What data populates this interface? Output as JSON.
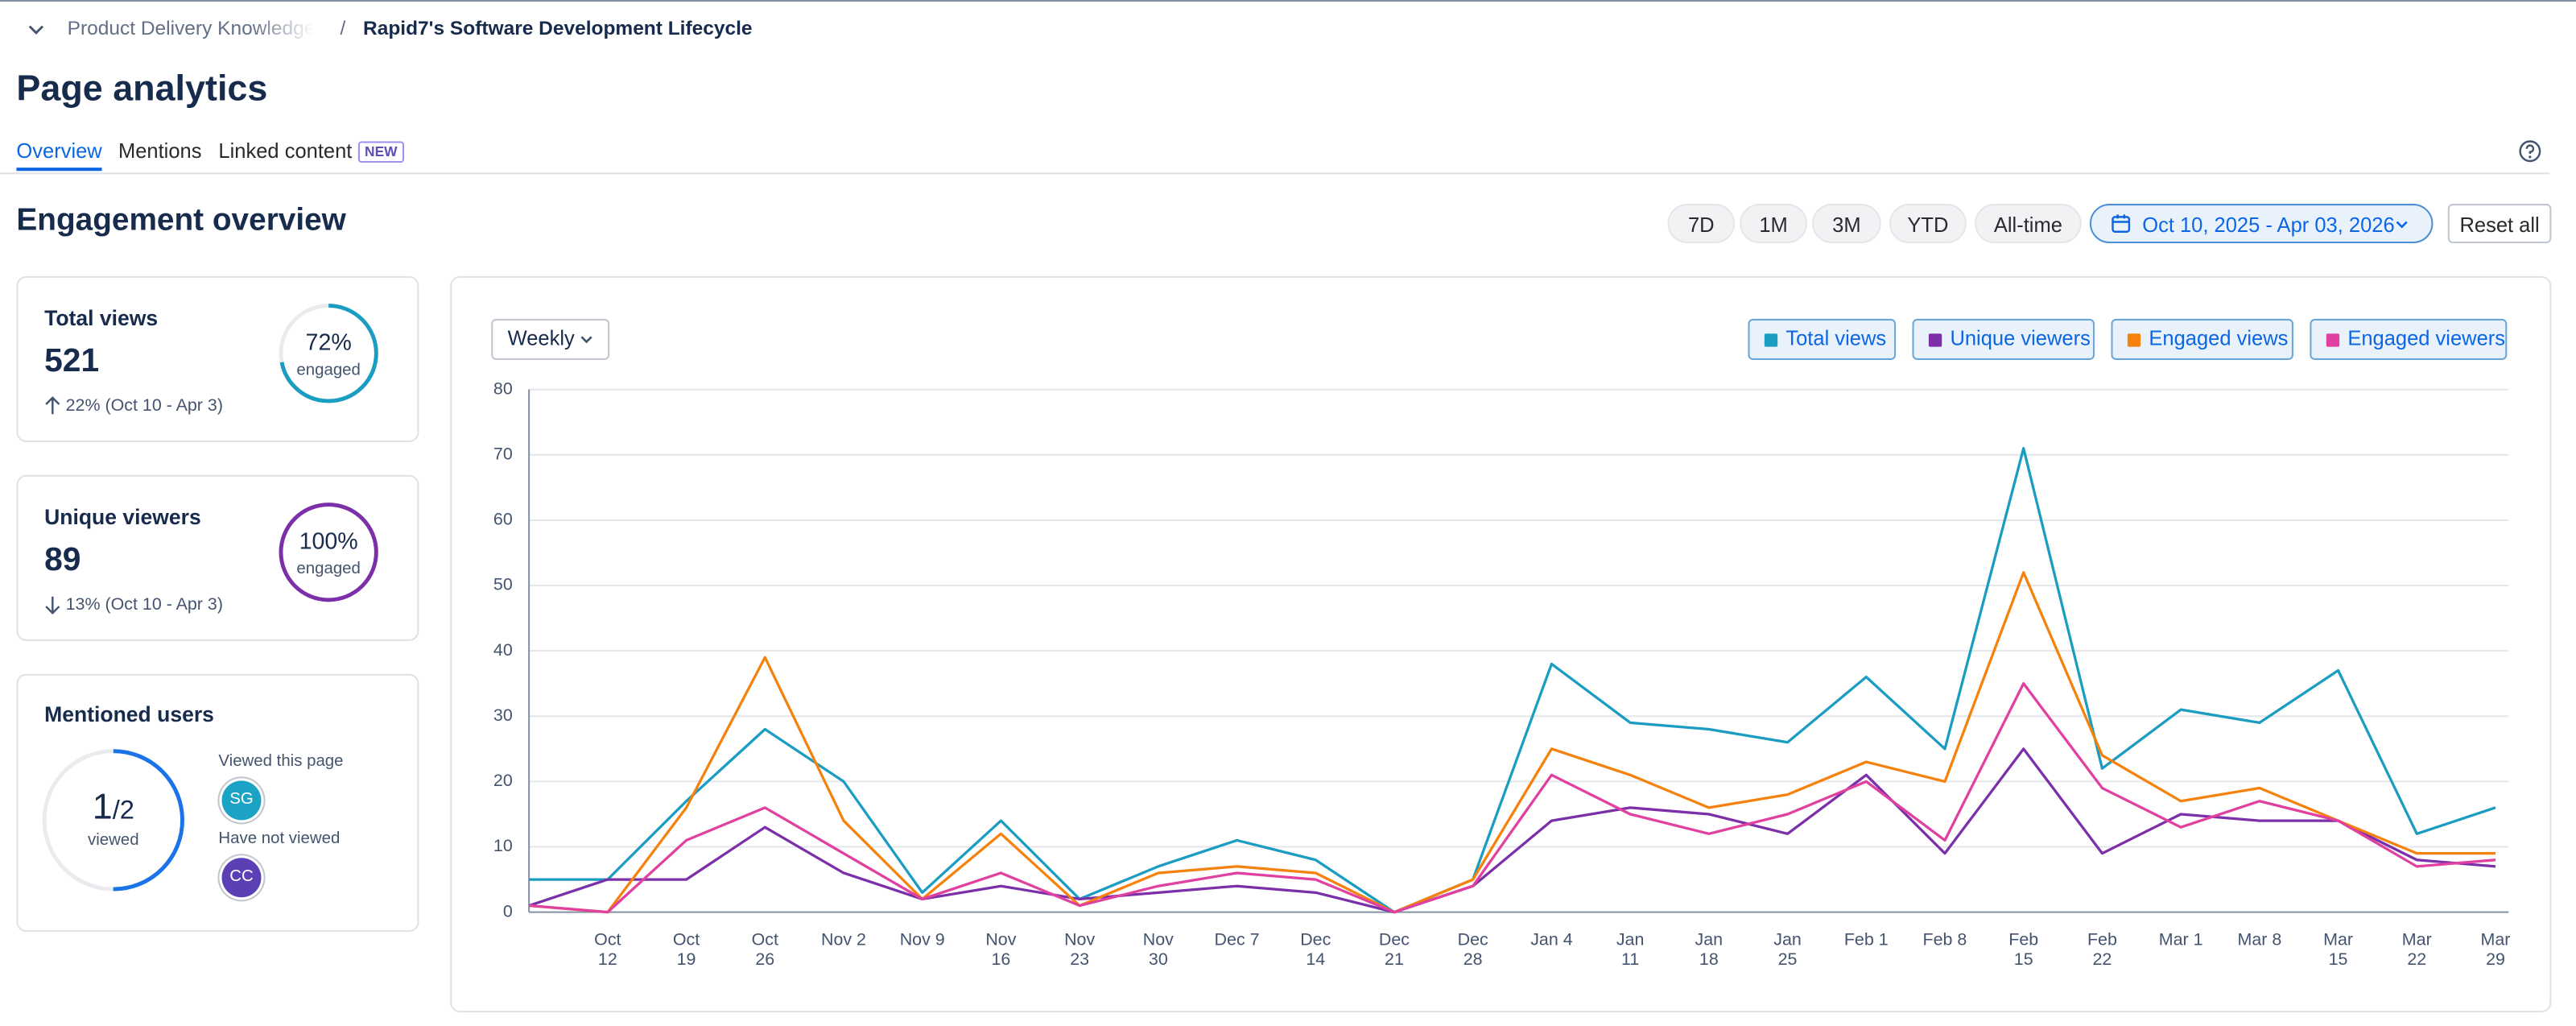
{
  "breadcrumb": {
    "parent": "Product Delivery Knowledge",
    "separator": "/",
    "current": "Rapid7's Software Development Lifecycle"
  },
  "title": "Page analytics",
  "tabs": [
    "Overview",
    "Mentions",
    "Linked content"
  ],
  "new_badge": "NEW",
  "section_title": "Engagement overview",
  "ranges": [
    "7D",
    "1M",
    "3M",
    "YTD",
    "All-time"
  ],
  "date_range": "Oct 10, 2025 - Apr 03, 2026",
  "reset": "Reset all",
  "cards": [
    {
      "title": "Total views",
      "value": 521,
      "direction": "up",
      "change": "22% (Oct 10 - Apr 3)",
      "ring": {
        "value": 72,
        "label": "72%"
      },
      "ring_label": "engaged",
      "color": "#1b9cc1"
    },
    {
      "title": "Unique viewers",
      "value": 89,
      "direction": "down",
      "change": "13% (Oct 10 - Apr 3)",
      "ring": {
        "value": 100,
        "label": "100%"
      },
      "ring_label": "engaged",
      "color": "#7b2fa8"
    }
  ],
  "mentions": {
    "title": "Mentioned users",
    "viewed": 1,
    "total": {
      "value": 2,
      "label": "/2"
    },
    "viewed_label": "viewed",
    "color": "#1a73e8",
    "groups": [
      {
        "label": "Viewed this page",
        "users": [
          "SG"
        ],
        "color": "#1ba3c6"
      },
      {
        "label": "Have not viewed",
        "users": [
          "CC"
        ],
        "color": "#5b3fb5"
      }
    ]
  },
  "interval": "Weekly",
  "chart_data": {
    "type": "line",
    "categories": [
      null,
      "Oct 12",
      "Oct 19",
      "Oct 26",
      "Nov 2",
      "Nov 9",
      "Nov 16",
      "Nov 23",
      "Nov 30",
      "Dec 7",
      "Dec 14",
      "Dec 21",
      "Dec 28",
      "Jan 4",
      "Jan 11",
      "Jan 18",
      "Jan 25",
      "Feb 1",
      "Feb 8",
      "Feb 15",
      "Feb 22",
      "Mar 1",
      "Mar 8",
      "Mar 15",
      "Mar 22",
      "Mar 29"
    ],
    "series": [
      {
        "name": "Total views",
        "color": "#1b9cc1",
        "values": [
          5,
          5,
          17,
          28,
          20,
          3,
          14,
          2,
          7,
          11,
          8,
          0,
          5,
          38,
          29,
          28,
          26,
          36,
          25,
          71,
          22,
          31,
          29,
          37,
          12,
          16
        ]
      },
      {
        "name": "Unique viewers",
        "color": "#7b2fa8",
        "values": [
          1,
          5,
          5,
          13,
          6,
          2,
          4,
          2,
          3,
          4,
          3,
          0,
          4,
          14,
          16,
          15,
          12,
          21,
          9,
          25,
          9,
          15,
          14,
          14,
          8,
          7
        ]
      },
      {
        "name": "Engaged views",
        "color": "#f5820d",
        "values": [
          1,
          0,
          16,
          39,
          14,
          2,
          12,
          1,
          6,
          7,
          6,
          0,
          5,
          25,
          21,
          16,
          18,
          23,
          20,
          52,
          24,
          17,
          19,
          14,
          9,
          9
        ]
      },
      {
        "name": "Engaged viewers",
        "color": "#e040a0",
        "values": [
          1,
          0,
          11,
          16,
          9,
          2,
          6,
          1,
          4,
          6,
          5,
          0,
          4,
          21,
          15,
          12,
          15,
          20,
          11,
          35,
          19,
          13,
          17,
          14,
          7,
          8
        ]
      }
    ],
    "ylim": [
      0,
      80
    ],
    "yticks": [
      0,
      10,
      20,
      30,
      40,
      50,
      60,
      70,
      80
    ],
    "grid": true
  }
}
